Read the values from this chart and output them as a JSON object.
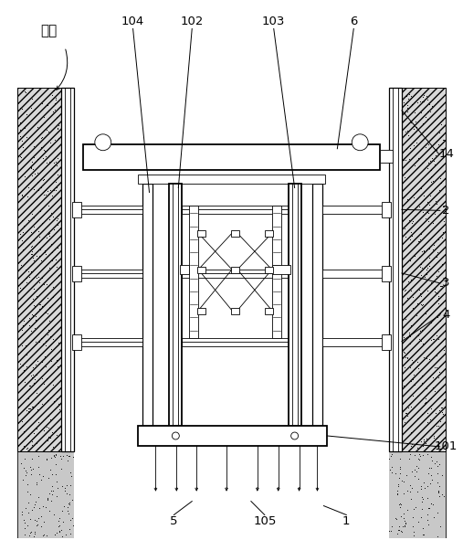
{
  "bg_color": "#ffffff",
  "line_color": "#000000",
  "figsize": [
    5.07,
    5.91
  ],
  "dpi": 100,
  "labels": {
    "jikeng": "基坑",
    "n104": "104",
    "n102": "102",
    "n103": "103",
    "n6": "6",
    "n14": "14",
    "n2": "2",
    "n3": "3",
    "n4": "4",
    "n101": "101",
    "n5": "5",
    "n105": "105",
    "n1": "1"
  }
}
